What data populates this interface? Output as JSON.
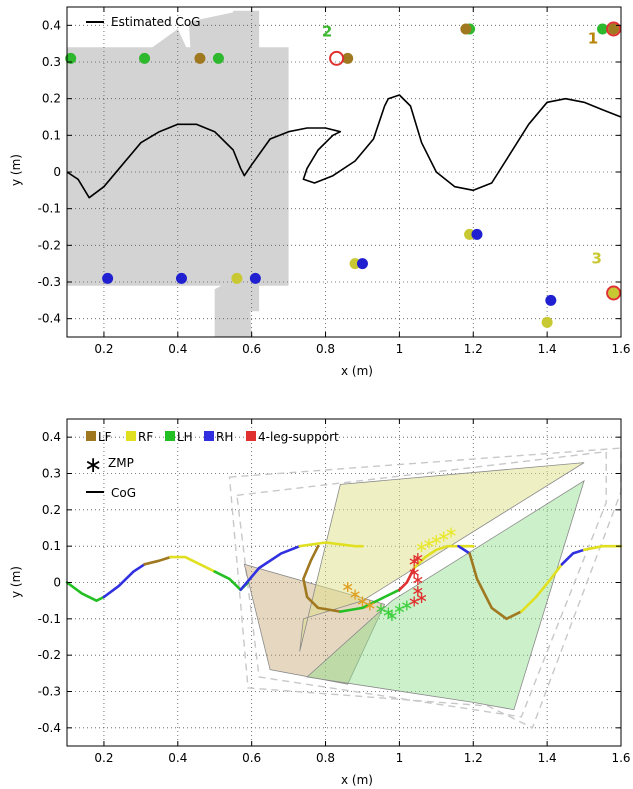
{
  "chart_data": [
    {
      "type": "scatter",
      "xlabel": "x (m)",
      "ylabel": "y (m)",
      "xlim": [
        0.1,
        1.6
      ],
      "ylim": [
        -0.45,
        0.45
      ],
      "xticks": [
        0.2,
        0.4,
        0.6,
        0.8,
        1,
        1.2,
        1.4,
        1.6
      ],
      "xtick_labels": [
        "0.2",
        "0.4",
        "0.6",
        "0.8",
        "1",
        "1.2",
        "1.4",
        "1.6"
      ],
      "yticks": [
        0.4,
        0.3,
        0.2,
        0.1,
        0,
        -0.1,
        -0.2,
        -0.3,
        -0.4
      ],
      "ytick_labels": [
        "0.4",
        "0.3",
        "0.2",
        "0.1",
        "0",
        "-0.1",
        "-0.2",
        "-0.3",
        "-0.4"
      ],
      "grid": true,
      "legend": {
        "placement": "top-left",
        "entries": [
          "Estimated CoG"
        ]
      },
      "annotations": [
        {
          "text": "1",
          "x": 1.51,
          "y": 0.35,
          "color": "#b8860b"
        },
        {
          "text": "2",
          "x": 0.79,
          "y": 0.37,
          "color": "#3cb82e"
        },
        {
          "text": "3",
          "x": 1.52,
          "y": -0.25,
          "color": "#c8c832"
        }
      ],
      "stepping_stones": [
        {
          "corners": [
            [
              0.1,
              0.34
            ],
            [
              0.7,
              0.34
            ],
            [
              0.7,
              -0.31
            ],
            [
              0.1,
              -0.31
            ]
          ]
        },
        {
          "corners": [
            [
              0.29,
              0.31
            ],
            [
              0.4,
              0.39
            ],
            [
              0.46,
              0.26
            ],
            [
              0.35,
              0.18
            ]
          ]
        },
        {
          "corners": [
            [
              0.43,
              0.41
            ],
            [
              0.57,
              0.44
            ],
            [
              0.56,
              0.23
            ],
            [
              0.44,
              0.23
            ]
          ]
        },
        {
          "corners": [
            [
              0.55,
              0.44
            ],
            [
              0.62,
              0.44
            ],
            [
              0.62,
              0.28
            ],
            [
              0.54,
              0.28
            ]
          ]
        },
        {
          "corners": [
            [
              0.3,
              -0.11
            ],
            [
              0.41,
              -0.08
            ],
            [
              0.44,
              -0.25
            ],
            [
              0.33,
              -0.28
            ]
          ]
        },
        {
          "corners": [
            [
              0.44,
              -0.07
            ],
            [
              0.55,
              -0.07
            ],
            [
              0.55,
              -0.25
            ],
            [
              0.43,
              -0.25
            ]
          ]
        },
        {
          "corners": [
            [
              0.5,
              -0.32
            ],
            [
              0.59,
              -0.27
            ],
            [
              0.6,
              -0.45
            ],
            [
              0.5,
              -0.45
            ]
          ]
        },
        {
          "corners": [
            [
              0.59,
              -0.19
            ],
            [
              0.62,
              -0.19
            ],
            [
              0.62,
              -0.38
            ],
            [
              0.59,
              -0.38
            ]
          ]
        }
      ],
      "footholds": [
        {
          "leg": "LH",
          "color": "#2eb82e",
          "points": [
            [
              0.11,
              0.31
            ],
            [
              0.31,
              0.31
            ],
            [
              0.51,
              0.31
            ],
            [
              1.19,
              0.39
            ],
            [
              1.55,
              0.39
            ]
          ]
        },
        {
          "leg": "LF",
          "color": "#a07820",
          "points": [
            [
              0.46,
              0.31
            ],
            [
              0.86,
              0.31
            ],
            [
              1.18,
              0.39
            ],
            [
              1.58,
              0.39
            ]
          ]
        },
        {
          "leg": "RF",
          "color": "#c8c832",
          "points": [
            [
              0.56,
              -0.29
            ],
            [
              0.88,
              -0.25
            ],
            [
              1.19,
              -0.17
            ],
            [
              1.4,
              -0.41
            ],
            [
              1.58,
              -0.33
            ]
          ]
        },
        {
          "leg": "RH",
          "color": "#2020d0",
          "points": [
            [
              0.21,
              -0.29
            ],
            [
              0.41,
              -0.29
            ],
            [
              0.61,
              -0.29
            ],
            [
              0.9,
              -0.25
            ],
            [
              1.21,
              -0.17
            ],
            [
              1.41,
              -0.35
            ]
          ]
        },
        {
          "leg": "4-leg-support",
          "color": "#e03030",
          "points": [
            [
              0.83,
              0.31
            ],
            [
              1.58,
              0.39
            ],
            [
              1.58,
              -0.33
            ]
          ]
        }
      ],
      "series": [
        {
          "name": "Estimated CoG",
          "color": "#000000",
          "x": [
            0.1,
            0.13,
            0.16,
            0.2,
            0.25,
            0.3,
            0.35,
            0.4,
            0.45,
            0.5,
            0.55,
            0.57,
            0.58,
            0.6,
            0.65,
            0.7,
            0.75,
            0.8,
            0.84,
            0.82,
            0.78,
            0.75,
            0.74,
            0.77,
            0.82,
            0.88,
            0.93,
            0.96,
            0.97,
            1.0,
            1.03,
            1.06,
            1.1,
            1.15,
            1.2,
            1.25,
            1.3,
            1.35,
            1.4,
            1.45,
            1.5,
            1.55,
            1.6
          ],
          "y": [
            0.0,
            -0.02,
            -0.07,
            -0.04,
            0.02,
            0.08,
            0.11,
            0.13,
            0.13,
            0.11,
            0.06,
            0.01,
            -0.01,
            0.02,
            0.09,
            0.11,
            0.12,
            0.12,
            0.11,
            0.1,
            0.06,
            0.01,
            -0.02,
            -0.03,
            -0.01,
            0.03,
            0.09,
            0.18,
            0.2,
            0.21,
            0.18,
            0.08,
            0.0,
            -0.04,
            -0.05,
            -0.03,
            0.05,
            0.13,
            0.19,
            0.2,
            0.19,
            0.17,
            0.15
          ]
        }
      ]
    },
    {
      "type": "line",
      "xlabel": "x (m)",
      "ylabel": "y (m)",
      "xlim": [
        0.1,
        1.6
      ],
      "ylim": [
        -0.45,
        0.45
      ],
      "xticks": [
        0.2,
        0.4,
        0.6,
        0.8,
        1,
        1.2,
        1.4,
        1.6
      ],
      "xtick_labels": [
        "0.2",
        "0.4",
        "0.6",
        "0.8",
        "1",
        "1.2",
        "1.4",
        "1.6"
      ],
      "yticks": [
        0.4,
        0.3,
        0.2,
        0.1,
        0,
        -0.1,
        -0.2,
        -0.3,
        -0.4
      ],
      "ytick_labels": [
        "0.4",
        "0.3",
        "0.2",
        "0.1",
        "0",
        "-0.1",
        "-0.2",
        "-0.3",
        "-0.4"
      ],
      "grid": true,
      "legend": {
        "placement": "top-left",
        "row1": [
          {
            "label": "LF",
            "color": "#a07820"
          },
          {
            "label": "RF",
            "color": "#e0e020"
          },
          {
            "label": "LH",
            "color": "#22c022"
          },
          {
            "label": "RH",
            "color": "#3030e0"
          },
          {
            "label": "4-leg-support",
            "color": "#e03030"
          }
        ],
        "zmp_label": "ZMP",
        "cog_label": "CoG"
      },
      "polygons": [
        {
          "fill": "#c2a06a",
          "opacity": 0.42,
          "points": [
            [
              0.58,
              0.05
            ],
            [
              0.96,
              -0.06
            ],
            [
              0.86,
              -0.28
            ],
            [
              0.65,
              -0.24
            ]
          ]
        },
        {
          "fill": "#e0e08a",
          "opacity": 0.5,
          "points": [
            [
              0.84,
              0.27
            ],
            [
              1.5,
              0.33
            ],
            [
              0.9,
              -0.05
            ],
            [
              0.74,
              -0.1
            ],
            [
              0.73,
              -0.19
            ]
          ]
        },
        {
          "fill": "#8ee08a",
          "opacity": 0.45,
          "points": [
            [
              0.75,
              -0.26
            ],
            [
              1.2,
              -0.33
            ],
            [
              1.31,
              -0.35
            ],
            [
              1.5,
              0.28
            ],
            [
              0.98,
              -0.05
            ]
          ]
        }
      ],
      "dashed_outlines": [
        {
          "points": [
            [
              0.54,
              0.29
            ],
            [
              1.6,
              0.37
            ],
            [
              1.6,
              0.25
            ],
            [
              1.36,
              -0.4
            ],
            [
              1.24,
              -0.34
            ],
            [
              0.59,
              -0.29
            ]
          ]
        },
        {
          "points": [
            [
              0.56,
              0.24
            ],
            [
              1.56,
              0.36
            ],
            [
              1.56,
              0.22
            ],
            [
              1.33,
              -0.37
            ],
            [
              0.62,
              -0.26
            ]
          ]
        }
      ],
      "zmp": [
        [
          0.86,
          -0.01
        ],
        [
          0.88,
          -0.03
        ],
        [
          0.9,
          -0.05
        ],
        [
          0.92,
          -0.06
        ],
        [
          0.95,
          -0.07
        ],
        [
          0.97,
          -0.08
        ],
        [
          0.98,
          -0.09
        ],
        [
          1.0,
          -0.07
        ],
        [
          1.02,
          -0.06
        ],
        [
          1.04,
          -0.05
        ],
        [
          1.04,
          0.03
        ],
        [
          1.05,
          0.01
        ],
        [
          1.04,
          0.06
        ],
        [
          1.05,
          0.07
        ],
        [
          1.06,
          0.1
        ],
        [
          1.08,
          0.11
        ],
        [
          1.1,
          0.12
        ],
        [
          1.12,
          0.13
        ],
        [
          1.14,
          0.14
        ],
        [
          1.06,
          -0.04
        ],
        [
          1.05,
          -0.02
        ]
      ],
      "series": [
        {
          "name": "LH",
          "color": "#22c022",
          "x": [
            0.1,
            0.14,
            0.18,
            0.2
          ],
          "y": [
            0.0,
            -0.03,
            -0.05,
            -0.04
          ]
        },
        {
          "name": "RH",
          "color": "#3030e0",
          "x": [
            0.2,
            0.24,
            0.28,
            0.31
          ],
          "y": [
            -0.04,
            -0.01,
            0.03,
            0.05
          ]
        },
        {
          "name": "LF",
          "color": "#a07820",
          "x": [
            0.31,
            0.35,
            0.38
          ],
          "y": [
            0.05,
            0.06,
            0.07
          ]
        },
        {
          "name": "RF",
          "color": "#e0e020",
          "x": [
            0.38,
            0.42,
            0.46,
            0.5
          ],
          "y": [
            0.07,
            0.07,
            0.05,
            0.03
          ]
        },
        {
          "name": "LH",
          "color": "#22c022",
          "x": [
            0.5,
            0.54,
            0.57,
            0.59,
            0.57
          ],
          "y": [
            0.03,
            0.01,
            -0.02,
            0.0,
            -0.02
          ]
        },
        {
          "name": "RH",
          "color": "#3030e0",
          "x": [
            0.57,
            0.62,
            0.68,
            0.73
          ],
          "y": [
            -0.02,
            0.04,
            0.08,
            0.1
          ]
        },
        {
          "name": "RF",
          "color": "#e0e020",
          "x": [
            0.73,
            0.8,
            0.88,
            0.9
          ],
          "y": [
            0.1,
            0.11,
            0.1,
            0.1
          ]
        },
        {
          "name": "LF",
          "color": "#a07820",
          "x": [
            0.78,
            0.76,
            0.74,
            0.75,
            0.78,
            0.84
          ],
          "y": [
            0.1,
            0.06,
            0.01,
            -0.04,
            -0.07,
            -0.08
          ]
        },
        {
          "name": "LH",
          "color": "#22c022",
          "x": [
            0.84,
            0.9,
            0.96,
            1.0
          ],
          "y": [
            -0.08,
            -0.07,
            -0.04,
            -0.02
          ]
        },
        {
          "name": "4-leg-support",
          "color": "#e03030",
          "x": [
            1.0,
            1.02,
            1.03,
            1.04
          ],
          "y": [
            -0.02,
            0.0,
            0.02,
            0.04
          ]
        },
        {
          "name": "RF",
          "color": "#e0e020",
          "x": [
            1.04,
            1.07,
            1.1,
            1.13,
            1.16,
            1.2
          ],
          "y": [
            0.04,
            0.07,
            0.09,
            0.1,
            0.1,
            0.1
          ]
        },
        {
          "name": "RH",
          "color": "#3030e0",
          "x": [
            1.16,
            1.19
          ],
          "y": [
            0.1,
            0.08
          ]
        },
        {
          "name": "LF",
          "color": "#a07820",
          "x": [
            1.19,
            1.21,
            1.25,
            1.29,
            1.33
          ],
          "y": [
            0.08,
            0.01,
            -0.07,
            -0.1,
            -0.08
          ]
        },
        {
          "name": "RF",
          "color": "#e0e020",
          "x": [
            1.33,
            1.37,
            1.41,
            1.44
          ],
          "y": [
            -0.08,
            -0.04,
            0.01,
            0.05
          ]
        },
        {
          "name": "RH",
          "color": "#3030e0",
          "x": [
            1.44,
            1.47,
            1.5
          ],
          "y": [
            0.05,
            0.08,
            0.09
          ]
        },
        {
          "name": "RF",
          "color": "#e0e020",
          "x": [
            1.5,
            1.55,
            1.6
          ],
          "y": [
            0.09,
            0.1,
            0.1
          ]
        }
      ]
    }
  ]
}
